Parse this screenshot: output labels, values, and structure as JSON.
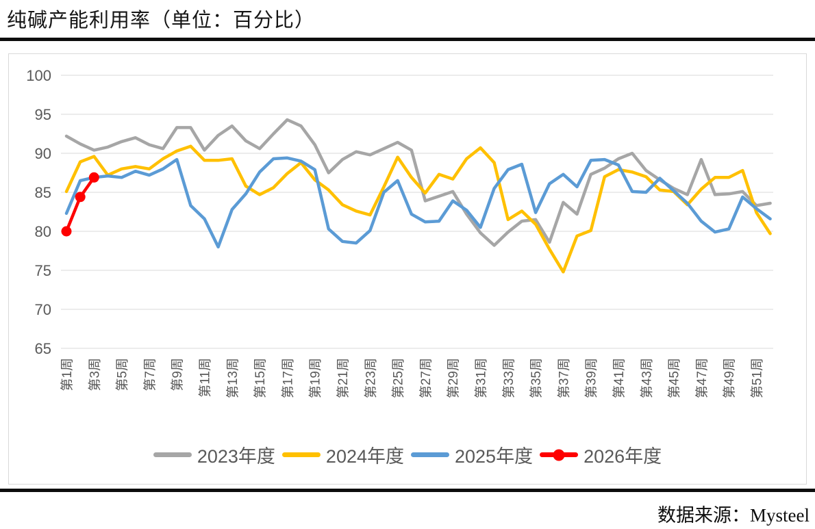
{
  "page": {
    "title": "纯碱产能利用率（单位：百分比）",
    "source": "数据来源：Mysteel"
  },
  "chart_data": {
    "type": "line",
    "title": "纯碱产能利用率（单位：百分比）",
    "xlabel": "",
    "ylabel": "",
    "ylim": [
      65,
      100
    ],
    "yticks": [
      100,
      95,
      90,
      85,
      80,
      75,
      70,
      65
    ],
    "grid": "horizontal",
    "legend_position": "bottom",
    "weeks_total": 52,
    "x_tick_labels": [
      "第1周",
      "第3周",
      "第5周",
      "第7周",
      "第9周",
      "第11周",
      "第13周",
      "第15周",
      "第17周",
      "第19周",
      "第21周",
      "第23周",
      "第25周",
      "第27周",
      "第29周",
      "第31周",
      "第33周",
      "第35周",
      "第37周",
      "第39周",
      "第41周",
      "第43周",
      "第45周",
      "第47周",
      "第49周",
      "第51周"
    ],
    "series": [
      {
        "name": "2023年度",
        "color": "#a6a6a6",
        "marker": false,
        "values": [
          92.2,
          91.2,
          90.4,
          90.8,
          91.5,
          92.0,
          91.1,
          90.6,
          93.3,
          93.3,
          90.4,
          92.3,
          93.5,
          91.6,
          90.6,
          92.5,
          94.3,
          93.5,
          91.1,
          87.5,
          89.2,
          90.2,
          89.8,
          90.6,
          91.4,
          90.4,
          83.9,
          84.5,
          85.1,
          82.2,
          79.8,
          78.2,
          79.9,
          81.3,
          81.5,
          78.6,
          83.7,
          82.2,
          87.3,
          88.1,
          89.3,
          90.0,
          87.8,
          86.6,
          85.5,
          84.7,
          89.2,
          84.7,
          84.8,
          85.1,
          83.3,
          83.6
        ]
      },
      {
        "name": "2024年度",
        "color": "#ffc000",
        "marker": false,
        "values": [
          85.1,
          88.9,
          89.6,
          87.2,
          88.0,
          88.3,
          88.0,
          89.3,
          90.3,
          90.9,
          89.1,
          89.1,
          89.3,
          85.8,
          84.7,
          85.6,
          87.4,
          88.8,
          86.6,
          85.3,
          83.4,
          82.6,
          82.1,
          85.7,
          89.5,
          86.9,
          84.9,
          87.3,
          86.7,
          89.3,
          90.7,
          88.8,
          81.5,
          82.6,
          80.9,
          77.7,
          74.8,
          79.4,
          80.1,
          87.0,
          87.9,
          87.6,
          87.0,
          85.3,
          85.1,
          83.4,
          85.4,
          86.9,
          86.9,
          87.8,
          82.4,
          79.7
        ]
      },
      {
        "name": "2025年度",
        "color": "#5b9bd5",
        "marker": false,
        "values": [
          82.3,
          86.5,
          86.9,
          87.1,
          86.9,
          87.7,
          87.2,
          88.0,
          89.2,
          83.3,
          81.6,
          78.0,
          82.8,
          84.8,
          87.6,
          89.3,
          89.4,
          89.0,
          87.9,
          80.3,
          78.7,
          78.5,
          80.1,
          85.0,
          86.5,
          82.2,
          81.2,
          81.3,
          83.9,
          82.7,
          80.5,
          85.5,
          87.9,
          88.6,
          82.4,
          86.1,
          87.3,
          85.7,
          89.1,
          89.2,
          88.5,
          85.1,
          85.0,
          86.8,
          85.2,
          83.6,
          81.3,
          79.9,
          80.3,
          84.4,
          82.9,
          81.6
        ]
      },
      {
        "name": "2026年度",
        "color": "#fe0000",
        "marker": true,
        "values": [
          80.0,
          84.4,
          86.9
        ]
      }
    ]
  }
}
